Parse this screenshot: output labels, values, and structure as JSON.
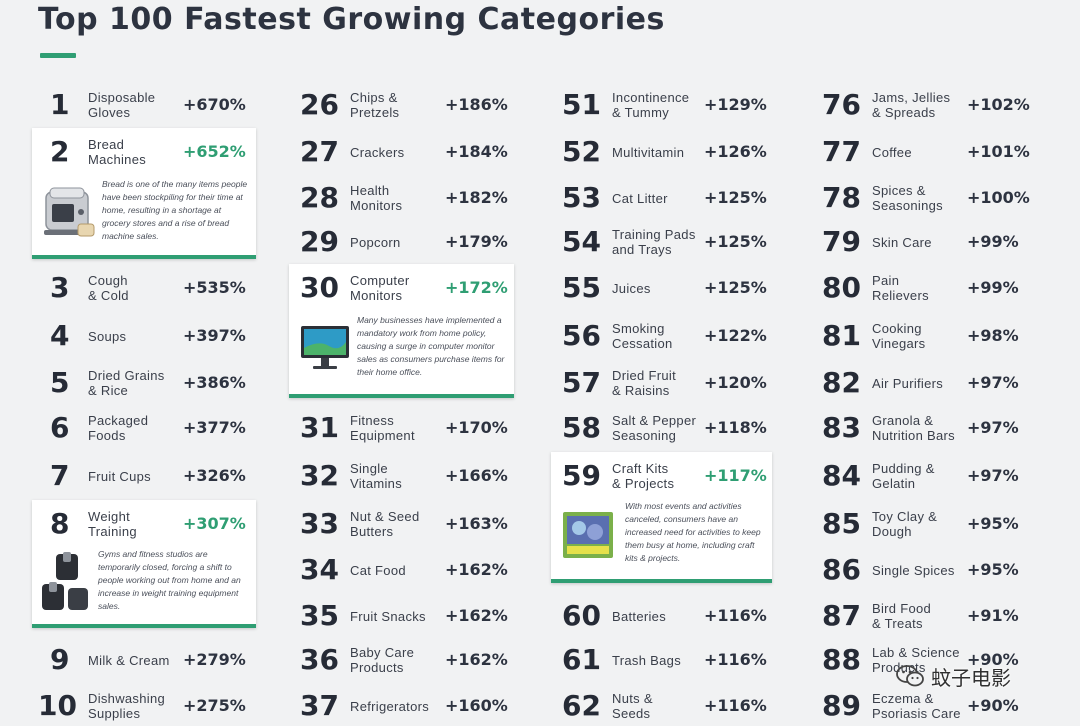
{
  "title": "Top 100 Fastest Growing Categories",
  "items": [
    {
      "rank": "1",
      "name": [
        "Disposable",
        "Gloves"
      ],
      "pct": "+670%"
    },
    {
      "rank": "2",
      "name": [
        "Bread",
        "Machines"
      ],
      "pct": "+652%",
      "featured": true,
      "desc": "Bread is one of the many items people have been stockpiling for their time at home, resulting in a shortage at grocery stores and a rise of bread machine sales."
    },
    {
      "rank": "3",
      "name": [
        "Cough",
        "& Cold"
      ],
      "pct": "+535%"
    },
    {
      "rank": "4",
      "name": [
        "Soups"
      ],
      "pct": "+397%"
    },
    {
      "rank": "5",
      "name": [
        "Dried Grains",
        "& Rice"
      ],
      "pct": "+386%"
    },
    {
      "rank": "6",
      "name": [
        "Packaged",
        "Foods"
      ],
      "pct": "+377%"
    },
    {
      "rank": "7",
      "name": [
        "Fruit Cups"
      ],
      "pct": "+326%"
    },
    {
      "rank": "8",
      "name": [
        "Weight",
        "Training"
      ],
      "pct": "+307%",
      "featured": true,
      "desc": "Gyms and fitness studios are temporarily closed, forcing a shift to people working out from home and an increase in weight training equipment sales."
    },
    {
      "rank": "9",
      "name": [
        "Milk & Cream"
      ],
      "pct": "+279%"
    },
    {
      "rank": "10",
      "name": [
        "Dishwashing",
        "Supplies"
      ],
      "pct": "+275%"
    },
    {
      "rank": "26",
      "name": [
        "Chips &",
        "Pretzels"
      ],
      "pct": "+186%"
    },
    {
      "rank": "27",
      "name": [
        "Crackers"
      ],
      "pct": "+184%"
    },
    {
      "rank": "28",
      "name": [
        "Health",
        "Monitors"
      ],
      "pct": "+182%"
    },
    {
      "rank": "29",
      "name": [
        "Popcorn"
      ],
      "pct": "+179%"
    },
    {
      "rank": "30",
      "name": [
        "Computer",
        "Monitors"
      ],
      "pct": "+172%",
      "featured": true,
      "desc": "Many businesses have implemented a mandatory work from home policy, causing a surge in computer monitor sales as consumers purchase items for their home office."
    },
    {
      "rank": "31",
      "name": [
        "Fitness",
        "Equipment"
      ],
      "pct": "+170%"
    },
    {
      "rank": "32",
      "name": [
        "Single",
        "Vitamins"
      ],
      "pct": "+166%"
    },
    {
      "rank": "33",
      "name": [
        "Nut & Seed",
        "Butters"
      ],
      "pct": "+163%"
    },
    {
      "rank": "34",
      "name": [
        "Cat Food"
      ],
      "pct": "+162%"
    },
    {
      "rank": "35",
      "name": [
        "Fruit Snacks"
      ],
      "pct": "+162%"
    },
    {
      "rank": "36",
      "name": [
        "Baby Care",
        "Products"
      ],
      "pct": "+162%"
    },
    {
      "rank": "37",
      "name": [
        "Refrigerators"
      ],
      "pct": "+160%"
    },
    {
      "rank": "51",
      "name": [
        "Incontinence",
        "& Tummy"
      ],
      "pct": "+129%"
    },
    {
      "rank": "52",
      "name": [
        "Multivitamin"
      ],
      "pct": "+126%"
    },
    {
      "rank": "53",
      "name": [
        "Cat Litter"
      ],
      "pct": "+125%"
    },
    {
      "rank": "54",
      "name": [
        "Training Pads",
        "and Trays"
      ],
      "pct": "+125%"
    },
    {
      "rank": "55",
      "name": [
        "Juices"
      ],
      "pct": "+125%"
    },
    {
      "rank": "56",
      "name": [
        "Smoking",
        "Cessation"
      ],
      "pct": "+122%"
    },
    {
      "rank": "57",
      "name": [
        "Dried Fruit",
        "& Raisins"
      ],
      "pct": "+120%"
    },
    {
      "rank": "58",
      "name": [
        "Salt & Pepper",
        "Seasoning"
      ],
      "pct": "+118%"
    },
    {
      "rank": "59",
      "name": [
        "Craft Kits",
        "& Projects"
      ],
      "pct": "+117%",
      "featured": true,
      "desc": "With most events and activities canceled, consumers have an increased need for activities to keep them busy at home, including craft kits & projects."
    },
    {
      "rank": "60",
      "name": [
        "Batteries"
      ],
      "pct": "+116%"
    },
    {
      "rank": "61",
      "name": [
        "Trash Bags"
      ],
      "pct": "+116%"
    },
    {
      "rank": "62",
      "name": [
        "Nuts &",
        "Seeds"
      ],
      "pct": "+116%"
    },
    {
      "rank": "76",
      "name": [
        "Jams, Jellies",
        "& Spreads"
      ],
      "pct": "+102%"
    },
    {
      "rank": "77",
      "name": [
        "Coffee"
      ],
      "pct": "+101%"
    },
    {
      "rank": "78",
      "name": [
        "Spices &",
        "Seasonings"
      ],
      "pct": "+100%"
    },
    {
      "rank": "79",
      "name": [
        "Skin Care"
      ],
      "pct": "+99%"
    },
    {
      "rank": "80",
      "name": [
        "Pain",
        "Relievers"
      ],
      "pct": "+99%"
    },
    {
      "rank": "81",
      "name": [
        "Cooking",
        "Vinegars"
      ],
      "pct": "+98%"
    },
    {
      "rank": "82",
      "name": [
        "Air Purifiers"
      ],
      "pct": "+97%"
    },
    {
      "rank": "83",
      "name": [
        "Granola &",
        "Nutrition Bars"
      ],
      "pct": "+97%"
    },
    {
      "rank": "84",
      "name": [
        "Pudding &",
        "Gelatin"
      ],
      "pct": "+97%"
    },
    {
      "rank": "85",
      "name": [
        "Toy Clay &",
        "Dough"
      ],
      "pct": "+95%"
    },
    {
      "rank": "86",
      "name": [
        "Single Spices"
      ],
      "pct": "+95%"
    },
    {
      "rank": "87",
      "name": [
        "Bird Food",
        "& Treats"
      ],
      "pct": "+91%"
    },
    {
      "rank": "88",
      "name": [
        "Lab & Science",
        "Products"
      ],
      "pct": "+90%"
    },
    {
      "rank": "89",
      "name": [
        "Eczema &",
        "Psoriasis Care"
      ],
      "pct": "+90%"
    }
  ],
  "watermark": {
    "text": "蚊子电影",
    "icon": "wechat-icon"
  },
  "colors": {
    "accent": "#2f9e73",
    "text": "#2d3340",
    "background": "#f1f2f3",
    "card": "#ffffff"
  }
}
